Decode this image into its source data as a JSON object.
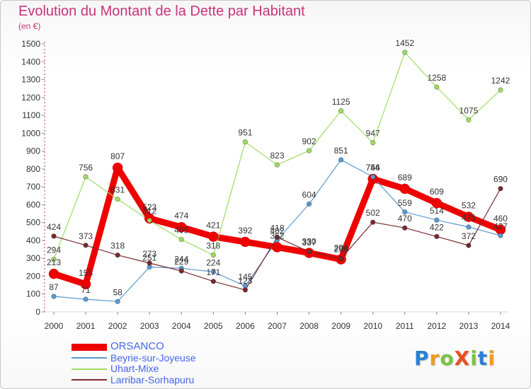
{
  "chart_data": {
    "type": "line",
    "title": "Evolution du Montant de la Dette par Habitant",
    "subtitle": "(en €)",
    "xlabel": "",
    "ylabel": "",
    "x": [
      "2000",
      "2001",
      "2002",
      "2003",
      "2004",
      "2005",
      "2006",
      "2007",
      "2008",
      "2009",
      "2010",
      "2011",
      "2012",
      "2013",
      "2014"
    ],
    "ylim": [
      0,
      1500
    ],
    "yticks": [
      0,
      100,
      200,
      300,
      400,
      500,
      600,
      700,
      800,
      900,
      1000,
      1100,
      1200,
      1300,
      1400,
      1500
    ],
    "grid": false,
    "legend_position": "bottom-left",
    "series": [
      {
        "name": "ORSANCO",
        "color": "#ee0000",
        "values": [
          213,
          155,
          807,
          523,
          474,
          421,
          392,
          362,
          330,
          294,
          744,
          689,
          609,
          532,
          460
        ]
      },
      {
        "name": "Beyrie-sur-Joyeuse",
        "color": "#5b9bd0",
        "values": [
          87,
          71,
          58,
          251,
          244,
          224,
          145,
          402,
          604,
          851,
          756,
          559,
          514,
          475,
          427
        ]
      },
      {
        "name": "Uhart-Mixe",
        "color": "#9fdc62",
        "values": [
          294,
          756,
          631,
          512,
          405,
          318,
          951,
          823,
          902,
          1125,
          947,
          1452,
          1258,
          1075,
          1242
        ]
      },
      {
        "name": "Larribar-Sorhapuru",
        "color": "#7a2a2e",
        "values": [
          424,
          373,
          318,
          273,
          229,
          171,
          123,
          418,
          337,
          298,
          502,
          470,
          422,
          372,
          690
        ]
      }
    ]
  },
  "axis_color": "#cc3b3b",
  "logo": {
    "text": "ProXiti",
    "colors": [
      "#2b7fd6",
      "#f39a1c",
      "#7cc242",
      "#e8501e",
      "#7cc242",
      "#2b7fd6",
      "#f39a1c"
    ]
  }
}
